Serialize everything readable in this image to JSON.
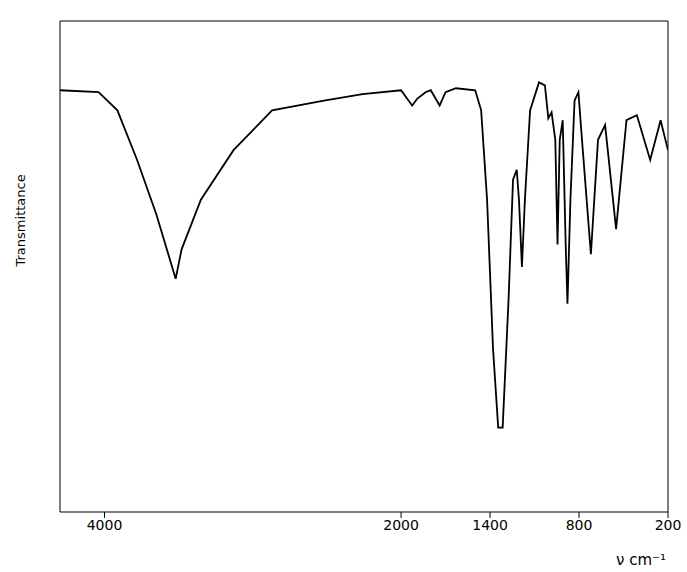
{
  "chart_data": {
    "type": "line",
    "x_label": "ν cm⁻¹",
    "y_label": "Transmittance",
    "xlim": [
      4300,
      200
    ],
    "xticks": [
      4000,
      2000,
      1400,
      800,
      200
    ],
    "ylim": [
      0,
      100
    ],
    "tick_labels": "x",
    "grid": false,
    "color": "#000000",
    "x": [
      4300,
      4040,
      3913,
      3780,
      3650,
      3520,
      3480,
      3350,
      3130,
      2870,
      2520,
      2260,
      2000,
      1960,
      1925,
      1890,
      1835,
      1800,
      1740,
      1700,
      1630,
      1500,
      1460,
      1420,
      1380,
      1345,
      1315,
      1275,
      1245,
      1220,
      1205,
      1185,
      1165,
      1130,
      1070,
      1030,
      1007,
      985,
      960,
      945,
      930,
      910,
      890,
      878,
      858,
      830,
      804,
      780,
      720,
      672,
      624,
      550,
      480,
      410,
      320,
      250,
      200
    ],
    "values": [
      85.9,
      85.5,
      81.8,
      71.7,
      60.6,
      47.5,
      53.5,
      63.6,
      73.7,
      81.8,
      83.8,
      85.1,
      85.9,
      84.2,
      82.8,
      84.2,
      85.5,
      85.9,
      82.8,
      85.5,
      86.3,
      85.9,
      81.8,
      63.6,
      33.3,
      17.2,
      17.2,
      43.4,
      67.7,
      69.7,
      63.6,
      49.9,
      63.6,
      81.8,
      87.5,
      86.9,
      80.2,
      81.4,
      75.8,
      54.5,
      75.8,
      79.8,
      54.5,
      42.4,
      63.6,
      83.8,
      85.5,
      75.8,
      52.5,
      75.8,
      78.8,
      57.6,
      79.8,
      80.8,
      71.7,
      79.8,
      73.7
    ]
  }
}
